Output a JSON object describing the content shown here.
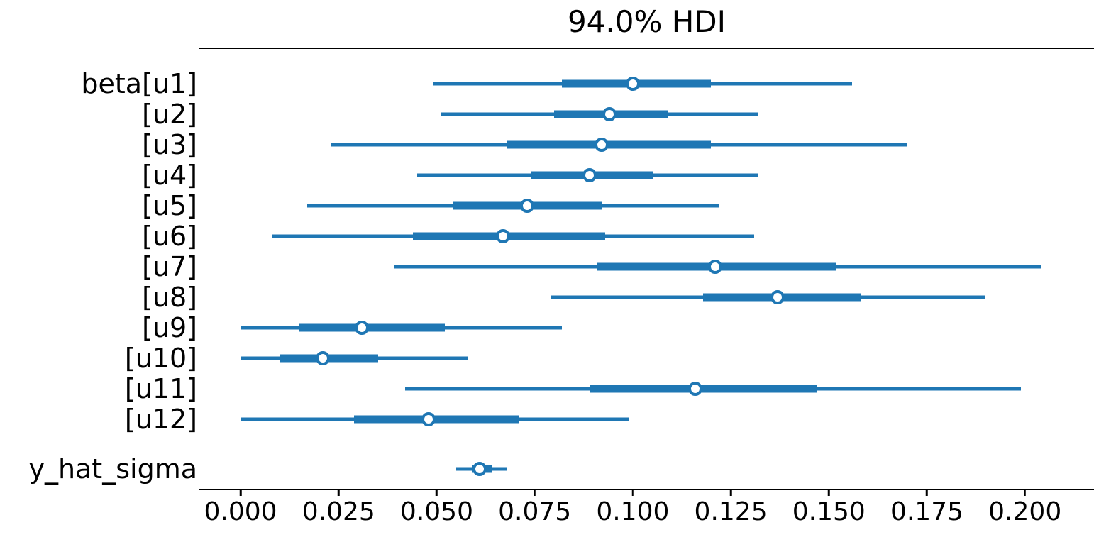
{
  "chart_data": {
    "type": "forest",
    "title": "94.0% HDI",
    "xlabel": "",
    "ylabel": "",
    "xlim": [
      -0.0105,
      0.2176
    ],
    "grid": false,
    "legend": false,
    "accent_color": "#1f77b4",
    "axis_color": "#000000",
    "background_color": "#ffffff",
    "x_ticks": [
      {
        "value": 0.0,
        "label": "0.000"
      },
      {
        "value": 0.025,
        "label": "0.025"
      },
      {
        "value": 0.05,
        "label": "0.050"
      },
      {
        "value": 0.075,
        "label": "0.075"
      },
      {
        "value": 0.1,
        "label": "0.100"
      },
      {
        "value": 0.125,
        "label": "0.125"
      },
      {
        "value": 0.15,
        "label": "0.150"
      },
      {
        "value": 0.175,
        "label": "0.175"
      },
      {
        "value": 0.2,
        "label": "0.200"
      }
    ],
    "rows": [
      {
        "label": "beta[u1]",
        "hdi_lo": 0.049,
        "q1": 0.082,
        "median": 0.1,
        "q3": 0.12,
        "hdi_hi": 0.156
      },
      {
        "label": "[u2]",
        "hdi_lo": 0.051,
        "q1": 0.08,
        "median": 0.094,
        "q3": 0.109,
        "hdi_hi": 0.132
      },
      {
        "label": "[u3]",
        "hdi_lo": 0.023,
        "q1": 0.068,
        "median": 0.092,
        "q3": 0.12,
        "hdi_hi": 0.17
      },
      {
        "label": "[u4]",
        "hdi_lo": 0.045,
        "q1": 0.074,
        "median": 0.089,
        "q3": 0.105,
        "hdi_hi": 0.132
      },
      {
        "label": "[u5]",
        "hdi_lo": 0.017,
        "q1": 0.054,
        "median": 0.073,
        "q3": 0.092,
        "hdi_hi": 0.122
      },
      {
        "label": "[u6]",
        "hdi_lo": 0.008,
        "q1": 0.044,
        "median": 0.067,
        "q3": 0.093,
        "hdi_hi": 0.131
      },
      {
        "label": "[u7]",
        "hdi_lo": 0.039,
        "q1": 0.091,
        "median": 0.121,
        "q3": 0.152,
        "hdi_hi": 0.204
      },
      {
        "label": "[u8]",
        "hdi_lo": 0.079,
        "q1": 0.118,
        "median": 0.137,
        "q3": 0.158,
        "hdi_hi": 0.19
      },
      {
        "label": "[u9]",
        "hdi_lo": 0.0,
        "q1": 0.015,
        "median": 0.031,
        "q3": 0.052,
        "hdi_hi": 0.082
      },
      {
        "label": "[u10]",
        "hdi_lo": 0.0,
        "q1": 0.01,
        "median": 0.021,
        "q3": 0.035,
        "hdi_hi": 0.058
      },
      {
        "label": "[u11]",
        "hdi_lo": 0.042,
        "q1": 0.089,
        "median": 0.116,
        "q3": 0.147,
        "hdi_hi": 0.199
      },
      {
        "label": "[u12]",
        "hdi_lo": 0.0,
        "q1": 0.029,
        "median": 0.048,
        "q3": 0.071,
        "hdi_hi": 0.099
      },
      {
        "label": "y_hat_sigma",
        "hdi_lo": 0.055,
        "q1": 0.059,
        "median": 0.061,
        "q3": 0.064,
        "hdi_hi": 0.068
      }
    ]
  }
}
